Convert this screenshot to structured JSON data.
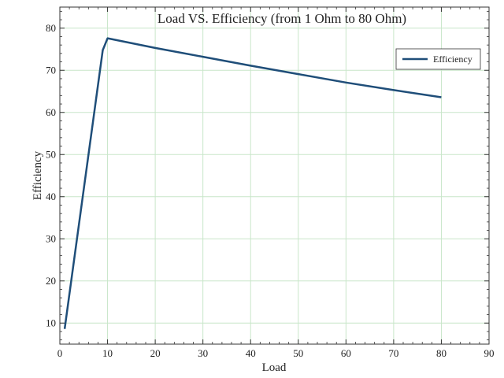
{
  "chart_data": {
    "type": "line",
    "title": "Load VS. Efficiency (from 1 Ohm to 80 Ohm)",
    "xlabel": "Load",
    "ylabel": "Efficiency",
    "xlim": [
      0,
      90
    ],
    "ylim": [
      5,
      85
    ],
    "xticks": [
      0,
      10,
      20,
      30,
      40,
      50,
      60,
      70,
      80,
      90
    ],
    "yticks": [
      10,
      20,
      30,
      40,
      50,
      60,
      70,
      80
    ],
    "grid": true,
    "legend_position": "top-right",
    "series": [
      {
        "name": "Efficiency",
        "color": "#1f4e79",
        "x": [
          1,
          9,
          10,
          20,
          30,
          40,
          50,
          60,
          70,
          80
        ],
        "y": [
          8.6,
          74.8,
          77.6,
          75.3,
          73.2,
          71.1,
          69.1,
          67.1,
          65.3,
          63.6
        ]
      }
    ]
  },
  "colors": {
    "grid": "#c8e6c9",
    "axis": "#333333"
  }
}
